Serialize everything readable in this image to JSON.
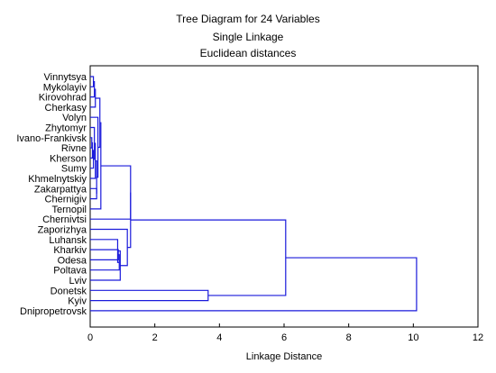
{
  "chart_data": {
    "type": "dendrogram",
    "title_lines": [
      "Tree Diagram for 24  Variables",
      "Single Linkage",
      "Euclidean distances"
    ],
    "xlabel": "Linkage Distance",
    "xlim": [
      0,
      12
    ],
    "xticks": [
      0,
      2,
      4,
      6,
      8,
      10,
      12
    ],
    "grid": false,
    "colors": {
      "tree": "#1a1adb",
      "frame": "#000000",
      "text": "#000000"
    },
    "leaves": [
      "Vinnytsya",
      "Mykolayiv",
      "Kirovohrad",
      "Cherkasy",
      "Volyn",
      "Zhytomyr",
      "Ivano-Frankivsk",
      "Rivne",
      "Kherson",
      "Sumy",
      "Khmelnytskiy",
      "Zakarpattya",
      "Chernigiv",
      "Ternopil",
      "Chernivtsi",
      "Zaporizhya",
      "Luhansk",
      "Kharkiv",
      "Odesa",
      "Poltava",
      "Lviv",
      "Donetsk",
      "Kyiv",
      "Dnipropetrovsk"
    ],
    "merges": [
      {
        "a": "Ivano-Frankivsk",
        "b": "Rivne",
        "distance": 0.05
      },
      {
        "a": "m1",
        "b": "Kherson",
        "distance": 0.07
      },
      {
        "a": "m2",
        "b": "Sumy",
        "distance": 0.1
      },
      {
        "a": "Zhytomyr",
        "b": "m3",
        "distance": 0.13
      },
      {
        "a": "Vinnytsya",
        "b": "Mykolayiv",
        "distance": 0.1
      },
      {
        "a": "m5",
        "b": "Kirovohrad",
        "distance": 0.13
      },
      {
        "a": "m6",
        "b": "Cherkasy",
        "distance": 0.16
      },
      {
        "a": "m4",
        "b": "Khmelnytskiy",
        "distance": 0.16
      },
      {
        "a": "Zakarpattya",
        "b": "Chernigiv",
        "distance": 0.2
      },
      {
        "a": "m8",
        "b": "m9",
        "distance": 0.2
      },
      {
        "a": "Volyn",
        "b": "m10",
        "distance": 0.24
      },
      {
        "a": "m7",
        "b": "m11",
        "distance": 0.3
      },
      {
        "a": "m12",
        "b": "Ternopil",
        "distance": 0.33
      },
      {
        "a": "Kharkiv",
        "b": "Odesa",
        "distance": 0.87
      },
      {
        "a": "m14",
        "b": "Poltava",
        "distance": 0.9
      },
      {
        "a": "Luhansk",
        "b": "m15",
        "distance": 0.85
      },
      {
        "a": "m16",
        "b": "Lviv",
        "distance": 0.93
      },
      {
        "a": "Zaporizhya",
        "b": "m17",
        "distance": 1.15
      },
      {
        "a": "m13",
        "b": "Chernivtsi",
        "distance": 1.25
      },
      {
        "a": "m19",
        "b": "m18",
        "distance": 1.25
      },
      {
        "a": "Donetsk",
        "b": "Kyiv",
        "distance": 3.65
      },
      {
        "a": "m20",
        "b": "m21",
        "distance": 6.05
      },
      {
        "a": "m22",
        "b": "Dnipropetrovsk",
        "distance": 10.1
      }
    ]
  }
}
